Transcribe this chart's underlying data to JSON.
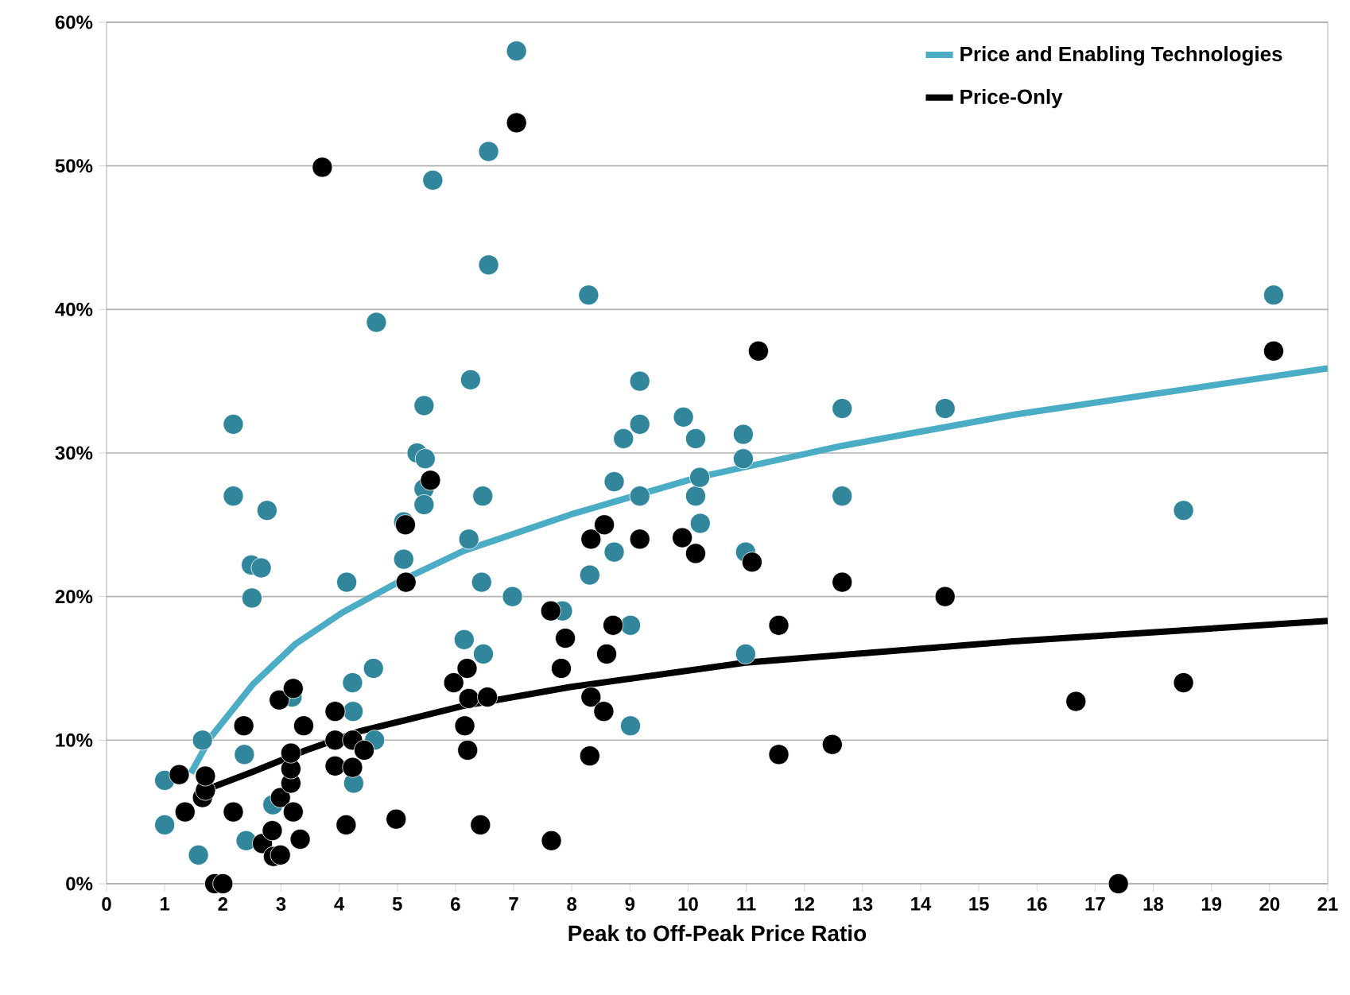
{
  "chart_data": {
    "type": "scatter",
    "xlabel": "Peak to Off-Peak Price Ratio",
    "xlim": [
      0,
      21
    ],
    "ylim": [
      0,
      60
    ],
    "xticks": [
      0,
      1,
      2,
      3,
      4,
      5,
      6,
      7,
      8,
      9,
      10,
      11,
      12,
      13,
      14,
      15,
      16,
      17,
      18,
      19,
      20,
      21
    ],
    "yticks": [
      {
        "value": 0,
        "label": "0%"
      },
      {
        "value": 10,
        "label": "10%"
      },
      {
        "value": 20,
        "label": "20%"
      },
      {
        "value": 30,
        "label": "30%"
      },
      {
        "value": 40,
        "label": "40%"
      },
      {
        "value": 50,
        "label": "50%"
      },
      {
        "value": 60,
        "label": "60%"
      }
    ],
    "grid": "y",
    "legend": "top right",
    "series": [
      {
        "marker": "circle",
        "color": "#31869b",
        "x": [
          1.0,
          1.0,
          1.58,
          1.65,
          2.18,
          2.18,
          2.76,
          2.49,
          2.66,
          2.5,
          2.37,
          2.4,
          2.86,
          3.19,
          4.13,
          4.23,
          4.24,
          4.25,
          4.59,
          4.61,
          4.64,
          5.11,
          5.11,
          5.34,
          5.48,
          5.46,
          5.46,
          5.46,
          5.61,
          6.15,
          6.23,
          6.26,
          6.45,
          6.47,
          6.48,
          6.57,
          6.57,
          6.98,
          7.05,
          7.84,
          8.29,
          8.31,
          8.73,
          8.73,
          8.89,
          9.01,
          9.01,
          9.17,
          9.17,
          9.17,
          9.92,
          10.13,
          10.13,
          10.2,
          10.21,
          10.95,
          10.95,
          10.99,
          10.99,
          12.65,
          12.65,
          14.42,
          18.52,
          20.07
        ],
        "values": [
          7.2,
          4.1,
          2.0,
          10.0,
          32.0,
          27.0,
          26.0,
          22.2,
          22.0,
          19.9,
          9.0,
          3.0,
          5.5,
          13.0,
          21.0,
          14.0,
          12.0,
          7.0,
          15.0,
          10.0,
          39.1,
          25.2,
          22.6,
          30.0,
          29.6,
          27.5,
          26.4,
          33.3,
          49.0,
          17.0,
          24.0,
          35.1,
          21.0,
          27.0,
          16.0,
          43.1,
          51.0,
          20.0,
          58.0,
          19.0,
          41.0,
          21.5,
          23.1,
          28.0,
          31.0,
          18.0,
          11.0,
          35.0,
          32.0,
          27.0,
          32.5,
          31.0,
          27.0,
          28.3,
          25.1,
          31.3,
          29.6,
          23.1,
          16.0,
          33.1,
          27.0,
          33.1,
          26.0,
          41.0
        ]
      },
      {
        "marker": "circle",
        "color": "#000000",
        "x": [
          1.25,
          1.35,
          1.65,
          1.7,
          1.7,
          1.86,
          2.0,
          2.18,
          2.36,
          2.68,
          2.85,
          2.87,
          2.97,
          2.99,
          2.99,
          3.17,
          3.17,
          3.17,
          3.21,
          3.21,
          3.33,
          3.39,
          3.71,
          3.93,
          3.93,
          3.93,
          4.12,
          4.23,
          4.23,
          4.43,
          4.98,
          5.14,
          5.15,
          5.57,
          5.97,
          6.16,
          6.2,
          6.21,
          6.23,
          6.43,
          6.55,
          7.05,
          7.64,
          7.65,
          7.82,
          7.89,
          8.31,
          8.33,
          8.33,
          8.55,
          8.56,
          8.6,
          8.71,
          9.17,
          9.9,
          10.13,
          11.1,
          11.21,
          11.56,
          11.56,
          12.48,
          12.65,
          14.42,
          16.67,
          17.4,
          18.52,
          20.07
        ],
        "values": [
          7.6,
          5.0,
          6.0,
          6.5,
          7.5,
          0,
          0,
          5.0,
          11.0,
          2.8,
          3.7,
          1.9,
          12.8,
          2.0,
          6.0,
          7.0,
          8.0,
          9.1,
          13.6,
          5.0,
          3.1,
          11.0,
          49.9,
          12.0,
          10.0,
          8.2,
          4.1,
          10.0,
          8.1,
          9.3,
          4.5,
          25.0,
          21.0,
          28.1,
          14.0,
          11.0,
          15.0,
          9.3,
          12.9,
          4.1,
          13.0,
          53.0,
          19.0,
          3.0,
          15.0,
          17.1,
          8.9,
          13.0,
          24.0,
          12.0,
          25.0,
          16.0,
          18.0,
          24.0,
          24.1,
          23.0,
          22.4,
          37.1,
          18.0,
          9.0,
          9.7,
          21.0,
          20.0,
          12.7,
          0,
          14.0,
          37.1
        ]
      },
      {
        "type": "line",
        "marker": "none",
        "name": "Price and Enabling Technologies",
        "color": "#4bacc6",
        "x": [
          1.45,
          1.79,
          2.52,
          3.25,
          4.06,
          5.06,
          6.15,
          7.97,
          10.17,
          12.65,
          15.65,
          21
        ],
        "values": [
          7.7,
          10.2,
          13.9,
          16.7,
          18.9,
          21.1,
          23.2,
          25.7,
          28.3,
          30.5,
          32.7,
          35.9
        ]
      },
      {
        "type": "line",
        "marker": "none",
        "name": "Price-Only",
        "color": "#000000",
        "x": [
          1.61,
          2.52,
          3.43,
          4.34,
          6.15,
          7.97,
          10.99,
          15.65,
          21
        ],
        "values": [
          6.4,
          7.8,
          9.3,
          10.6,
          12.4,
          13.7,
          15.4,
          16.9,
          18.3
        ]
      }
    ]
  }
}
